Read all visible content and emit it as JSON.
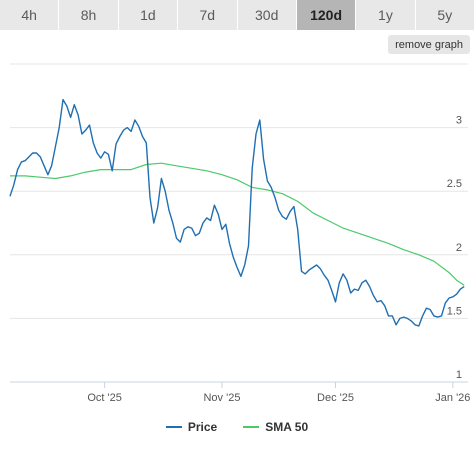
{
  "tabs": [
    {
      "label": "4h"
    },
    {
      "label": "8h"
    },
    {
      "label": "1d"
    },
    {
      "label": "7d"
    },
    {
      "label": "30d"
    },
    {
      "label": "120d",
      "active": true
    },
    {
      "label": "1y"
    },
    {
      "label": "5y"
    }
  ],
  "remove_graph_label": "remove graph",
  "chart_data": {
    "type": "line",
    "title": "",
    "xlabel": "",
    "ylabel": "",
    "ylim": [
      1,
      3.2
    ],
    "yticks": [
      1,
      1.5,
      2,
      2.5,
      3
    ],
    "ytick_labels": [
      "1",
      "1.5",
      "2",
      "2.5",
      "3"
    ],
    "xticks": [
      {
        "label": "Oct '25",
        "x": "2025-10-01"
      },
      {
        "label": "Nov '25",
        "x": "2025-11-01"
      },
      {
        "label": "Dec '25",
        "x": "2025-12-01"
      },
      {
        "label": "Jan '26",
        "x": "2026-01-01"
      }
    ],
    "xlim": [
      "2025-09-06",
      "2026-01-05"
    ],
    "grid": "horizontal",
    "legend": "bottom-center",
    "series": [
      {
        "name": "Price",
        "color": "#1f6fb2",
        "points": [
          [
            "2025-09-06",
            2.46
          ],
          [
            "2025-09-07",
            2.55
          ],
          [
            "2025-09-08",
            2.67
          ],
          [
            "2025-09-09",
            2.73
          ],
          [
            "2025-09-10",
            2.74
          ],
          [
            "2025-09-11",
            2.77
          ],
          [
            "2025-09-12",
            2.8
          ],
          [
            "2025-09-13",
            2.8
          ],
          [
            "2025-09-14",
            2.77
          ],
          [
            "2025-09-15",
            2.7
          ],
          [
            "2025-09-16",
            2.63
          ],
          [
            "2025-09-17",
            2.7
          ],
          [
            "2025-09-18",
            2.85
          ],
          [
            "2025-09-19",
            3.0
          ],
          [
            "2025-09-20",
            3.22
          ],
          [
            "2025-09-21",
            3.17
          ],
          [
            "2025-09-22",
            3.08
          ],
          [
            "2025-09-23",
            3.18
          ],
          [
            "2025-09-24",
            3.1
          ],
          [
            "2025-09-25",
            2.95
          ],
          [
            "2025-09-26",
            2.98
          ],
          [
            "2025-09-27",
            3.02
          ],
          [
            "2025-09-28",
            2.88
          ],
          [
            "2025-09-29",
            2.8
          ],
          [
            "2025-09-30",
            2.76
          ],
          [
            "2025-10-01",
            2.81
          ],
          [
            "2025-10-02",
            2.79
          ],
          [
            "2025-10-03",
            2.66
          ],
          [
            "2025-10-04",
            2.87
          ],
          [
            "2025-10-05",
            2.93
          ],
          [
            "2025-10-06",
            2.98
          ],
          [
            "2025-10-07",
            3.0
          ],
          [
            "2025-10-08",
            2.97
          ],
          [
            "2025-10-09",
            3.06
          ],
          [
            "2025-10-10",
            3.01
          ],
          [
            "2025-10-11",
            2.93
          ],
          [
            "2025-10-12",
            2.88
          ],
          [
            "2025-10-13",
            2.45
          ],
          [
            "2025-10-14",
            2.25
          ],
          [
            "2025-10-15",
            2.37
          ],
          [
            "2025-10-16",
            2.6
          ],
          [
            "2025-10-17",
            2.5
          ],
          [
            "2025-10-18",
            2.35
          ],
          [
            "2025-10-19",
            2.25
          ],
          [
            "2025-10-20",
            2.13
          ],
          [
            "2025-10-21",
            2.1
          ],
          [
            "2025-10-22",
            2.2
          ],
          [
            "2025-10-23",
            2.22
          ],
          [
            "2025-10-24",
            2.21
          ],
          [
            "2025-10-25",
            2.15
          ],
          [
            "2025-10-26",
            2.17
          ],
          [
            "2025-10-27",
            2.25
          ],
          [
            "2025-10-28",
            2.29
          ],
          [
            "2025-10-29",
            2.27
          ],
          [
            "2025-10-30",
            2.39
          ],
          [
            "2025-10-31",
            2.32
          ],
          [
            "2025-11-01",
            2.2
          ],
          [
            "2025-11-02",
            2.24
          ],
          [
            "2025-11-03",
            2.09
          ],
          [
            "2025-11-04",
            1.98
          ],
          [
            "2025-11-05",
            1.9
          ],
          [
            "2025-11-06",
            1.83
          ],
          [
            "2025-11-07",
            1.92
          ],
          [
            "2025-11-08",
            2.07
          ],
          [
            "2025-11-09",
            2.68
          ],
          [
            "2025-11-10",
            2.95
          ],
          [
            "2025-11-11",
            3.06
          ],
          [
            "2025-11-12",
            2.75
          ],
          [
            "2025-11-13",
            2.58
          ],
          [
            "2025-11-14",
            2.53
          ],
          [
            "2025-11-15",
            2.45
          ],
          [
            "2025-11-16",
            2.35
          ],
          [
            "2025-11-17",
            2.3
          ],
          [
            "2025-11-18",
            2.28
          ],
          [
            "2025-11-19",
            2.34
          ],
          [
            "2025-11-20",
            2.38
          ],
          [
            "2025-11-21",
            2.2
          ],
          [
            "2025-11-22",
            1.87
          ],
          [
            "2025-11-23",
            1.85
          ],
          [
            "2025-11-24",
            1.88
          ],
          [
            "2025-11-25",
            1.9
          ],
          [
            "2025-11-26",
            1.92
          ],
          [
            "2025-11-27",
            1.89
          ],
          [
            "2025-11-28",
            1.84
          ],
          [
            "2025-11-29",
            1.8
          ],
          [
            "2025-11-30",
            1.72
          ],
          [
            "2025-12-01",
            1.63
          ],
          [
            "2025-12-02",
            1.78
          ],
          [
            "2025-12-03",
            1.85
          ],
          [
            "2025-12-04",
            1.8
          ],
          [
            "2025-12-05",
            1.7
          ],
          [
            "2025-12-06",
            1.73
          ],
          [
            "2025-12-07",
            1.72
          ],
          [
            "2025-12-08",
            1.78
          ],
          [
            "2025-12-09",
            1.8
          ],
          [
            "2025-12-10",
            1.75
          ],
          [
            "2025-12-11",
            1.68
          ],
          [
            "2025-12-12",
            1.63
          ],
          [
            "2025-12-13",
            1.64
          ],
          [
            "2025-12-14",
            1.6
          ],
          [
            "2025-12-15",
            1.52
          ],
          [
            "2025-12-16",
            1.52
          ],
          [
            "2025-12-17",
            1.45
          ],
          [
            "2025-12-18",
            1.5
          ],
          [
            "2025-12-19",
            1.51
          ],
          [
            "2025-12-20",
            1.5
          ],
          [
            "2025-12-21",
            1.48
          ],
          [
            "2025-12-22",
            1.45
          ],
          [
            "2025-12-23",
            1.44
          ],
          [
            "2025-12-24",
            1.52
          ],
          [
            "2025-12-25",
            1.58
          ],
          [
            "2025-12-26",
            1.57
          ],
          [
            "2025-12-27",
            1.52
          ],
          [
            "2025-12-28",
            1.51
          ],
          [
            "2025-12-29",
            1.52
          ],
          [
            "2025-12-30",
            1.62
          ],
          [
            "2025-12-31",
            1.66
          ],
          [
            "2026-01-01",
            1.67
          ],
          [
            "2026-01-02",
            1.69
          ],
          [
            "2026-01-03",
            1.73
          ],
          [
            "2026-01-04",
            1.75
          ]
        ]
      },
      {
        "name": "SMA 50",
        "color": "#4cc96b",
        "points": [
          [
            "2025-09-06",
            2.62
          ],
          [
            "2025-09-10",
            2.62
          ],
          [
            "2025-09-14",
            2.61
          ],
          [
            "2025-09-18",
            2.6
          ],
          [
            "2025-09-22",
            2.62
          ],
          [
            "2025-09-26",
            2.65
          ],
          [
            "2025-09-30",
            2.67
          ],
          [
            "2025-10-04",
            2.67
          ],
          [
            "2025-10-08",
            2.67
          ],
          [
            "2025-10-12",
            2.71
          ],
          [
            "2025-10-16",
            2.72
          ],
          [
            "2025-10-20",
            2.7
          ],
          [
            "2025-10-24",
            2.68
          ],
          [
            "2025-10-28",
            2.66
          ],
          [
            "2025-11-01",
            2.63
          ],
          [
            "2025-11-05",
            2.59
          ],
          [
            "2025-11-09",
            2.53
          ],
          [
            "2025-11-13",
            2.51
          ],
          [
            "2025-11-17",
            2.48
          ],
          [
            "2025-11-21",
            2.42
          ],
          [
            "2025-11-25",
            2.33
          ],
          [
            "2025-11-29",
            2.27
          ],
          [
            "2025-12-03",
            2.21
          ],
          [
            "2025-12-07",
            2.17
          ],
          [
            "2025-12-11",
            2.13
          ],
          [
            "2025-12-15",
            2.09
          ],
          [
            "2025-12-19",
            2.04
          ],
          [
            "2025-12-23",
            2.0
          ],
          [
            "2025-12-27",
            1.95
          ],
          [
            "2025-12-31",
            1.86
          ],
          [
            "2026-01-02",
            1.8
          ],
          [
            "2026-01-04",
            1.76
          ]
        ]
      }
    ]
  }
}
